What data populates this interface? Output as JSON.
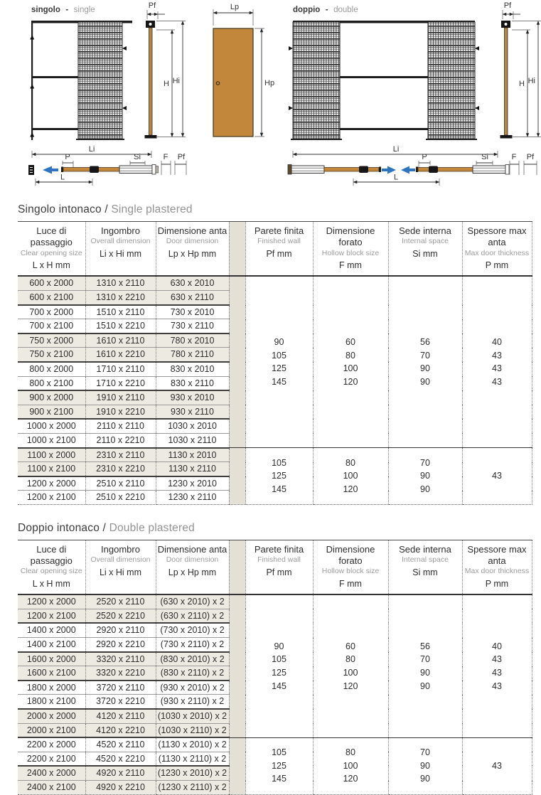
{
  "diagrams": {
    "dash": "-",
    "single": {
      "it": "singolo",
      "en": "single"
    },
    "double": {
      "it": "doppio",
      "en": "double"
    },
    "dims": {
      "pf": "Pf",
      "h": "H",
      "hi": "Hi",
      "lp": "Lp",
      "hp": "Hp",
      "li": "Li",
      "p": "P",
      "si": "Si",
      "f": "F",
      "l": "L"
    }
  },
  "colors": {
    "door_tan": "#c2873b",
    "arrow_blue": "#2e74c0",
    "row_shading": "#edeae2",
    "gap_column": "#e4e0d6"
  },
  "tables": [
    {
      "title_it": "Singolo intonaco",
      "title_sep": "/",
      "title_en": "Single plastered",
      "columns": [
        {
          "it": "Luce di passaggio",
          "en": "Clear opening size",
          "unit": "L x H mm"
        },
        {
          "it": "Ingombro",
          "en": "Overall dimension",
          "unit": "Li x Hi mm"
        },
        {
          "it": "Dimensione anta",
          "en": "Door dimension",
          "unit": "Lp x Hp mm"
        },
        {
          "it": "Parete finita",
          "en": "Finished wall",
          "unit": "Pf mm"
        },
        {
          "it": "Dimensione forato",
          "en": "Hollow block size",
          "unit": "F mm"
        },
        {
          "it": "Sede interna",
          "en": "Internal space",
          "unit": "Si mm"
        },
        {
          "it": "Spessore max anta",
          "en": "Max door thickness",
          "unit": "P mm"
        }
      ],
      "rows": [
        [
          "600 x 2000",
          "1310 x 2110",
          "630 x 2010"
        ],
        [
          "600 x 2100",
          "1310 x 2210",
          "630 x 2110"
        ],
        [
          "700 x 2000",
          "1510 x 2110",
          "730 x 2010"
        ],
        [
          "700 x 2100",
          "1510 x 2210",
          "730 x 2110"
        ],
        [
          "750 x 2000",
          "1610 x 2110",
          "780 x 2010"
        ],
        [
          "750 x 2100",
          "1610 x 2210",
          "780 x 2110"
        ],
        [
          "800 x 2000",
          "1710 x 2110",
          "830 x 2010"
        ],
        [
          "800 x 2100",
          "1710 x 2210",
          "830 x 2110"
        ],
        [
          "900 x 2000",
          "1910 x 2110",
          "930 x 2010"
        ],
        [
          "900 x 2100",
          "1910 x 2210",
          "930 x 2110"
        ],
        [
          "1000 x 2000",
          "2110 x 2110",
          "1030 x 2010"
        ],
        [
          "1000 x 2100",
          "2110 x 2210",
          "1030 x 2110"
        ],
        [
          "1100 x 2000",
          "2310 x 2110",
          "1130 x 2010"
        ],
        [
          "1100 x 2100",
          "2310 x 2210",
          "1130 x 2110"
        ],
        [
          "1200 x 2000",
          "2510 x 2110",
          "1230 x 2010"
        ],
        [
          "1200 x 2100",
          "2510 x 2210",
          "1230 x 2110"
        ]
      ],
      "groups": [
        {
          "rows": 12,
          "pf": [
            "90",
            "105",
            "125",
            "145"
          ],
          "f": [
            "60",
            "80",
            "100",
            "120"
          ],
          "si": [
            "56",
            "70",
            "90",
            "90"
          ],
          "p": [
            "40",
            "43",
            "43",
            "43"
          ]
        },
        {
          "rows": 4,
          "pf": [
            "105",
            "125",
            "145"
          ],
          "f": [
            "80",
            "100",
            "120"
          ],
          "si": [
            "70",
            "90",
            "90"
          ],
          "p": [
            "43"
          ]
        }
      ]
    },
    {
      "title_it": "Doppio intonaco",
      "title_sep": "/",
      "title_en": "Double plastered",
      "columns": [
        {
          "it": "Luce di passaggio",
          "en": "Clear opening size",
          "unit": "L x H mm"
        },
        {
          "it": "Ingombro",
          "en": "Overall dimension",
          "unit": "Li x Hi mm"
        },
        {
          "it": "Dimensione anta",
          "en": "Door dimension",
          "unit": "Lp x Hp mm"
        },
        {
          "it": "Parete finita",
          "en": "Finished wall",
          "unit": "Pf mm"
        },
        {
          "it": "Dimensione forato",
          "en": "Hollow block size",
          "unit": "F mm"
        },
        {
          "it": "Sede interna",
          "en": "Internal space",
          "unit": "Si mm"
        },
        {
          "it": "Spessore max anta",
          "en": "Max door thickness",
          "unit": "P mm"
        }
      ],
      "rows": [
        [
          "1200 x 2000",
          "2520 x 2110",
          "(630 x 2010) x 2"
        ],
        [
          "1200 x 2100",
          "2520 x 2210",
          "(630 x 2110) x 2"
        ],
        [
          "1400 x 2000",
          "2920 x 2110",
          "(730 x 2010) x 2"
        ],
        [
          "1400 x 2100",
          "2920 x 2210",
          "(730 x 2110) x 2"
        ],
        [
          "1600 x 2000",
          "3320 x 2110",
          "(830 x 2010) x 2"
        ],
        [
          "1600 x 2100",
          "3320 x 2210",
          "(830 x 2110) x 2"
        ],
        [
          "1800 x 2000",
          "3720 x 2110",
          "(930 x 2010) x 2"
        ],
        [
          "1800 x 2100",
          "3720 x 2210",
          "(930 x 2110) x 2"
        ],
        [
          "2000 x 2000",
          "4120 x 2110",
          "(1030 x 2010) x 2"
        ],
        [
          "2000 x 2100",
          "4120 x 2210",
          "(1030 x 2110) x 2"
        ],
        [
          "2200 x 2000",
          "4520 x 2110",
          "(1130 x 2010) x 2"
        ],
        [
          "2200 x 2100",
          "4520 x 2210",
          "(1130 x 2110) x 2"
        ],
        [
          "2400 x 2000",
          "4920 x 2110",
          "(1230 x 2010) x 2"
        ],
        [
          "2400 x 2100",
          "4920 x 2210",
          "(1230 x 2110) x 2"
        ]
      ],
      "groups": [
        {
          "rows": 10,
          "pf": [
            "90",
            "105",
            "125",
            "145"
          ],
          "f": [
            "60",
            "80",
            "100",
            "120"
          ],
          "si": [
            "56",
            "70",
            "90",
            "90"
          ],
          "p": [
            "40",
            "43",
            "43",
            "43"
          ]
        },
        {
          "rows": 4,
          "pf": [
            "105",
            "125",
            "145"
          ],
          "f": [
            "80",
            "100",
            "120"
          ],
          "si": [
            "70",
            "90",
            "90"
          ],
          "p": [
            "43"
          ]
        }
      ]
    }
  ]
}
